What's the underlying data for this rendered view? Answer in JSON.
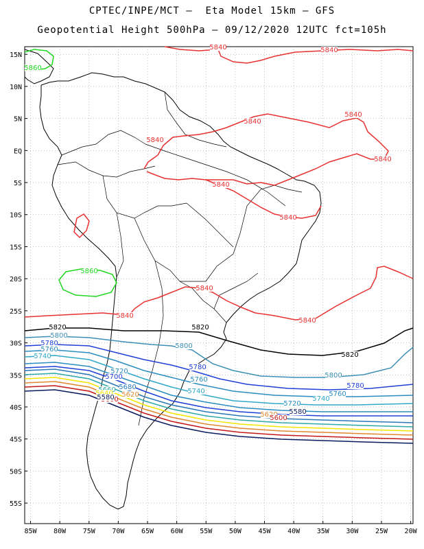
{
  "header": {
    "line1": "CPTEC/INPE/MCT –  Eta Model 15km – GFS",
    "line2": "Geopotential Height 500hPa – 09/12/2020 12UTC fct=105h"
  },
  "axes": {
    "lat_labels": [
      "15N",
      "10N",
      "5N",
      "EQ",
      "5S",
      "10S",
      "15S",
      "20S",
      "25S",
      "30S",
      "35S",
      "40S",
      "45S",
      "50S",
      "55S"
    ],
    "lon_labels": [
      "85W",
      "80W",
      "75W",
      "70W",
      "65W",
      "60W",
      "55W",
      "50W",
      "45W",
      "40W",
      "35W",
      "30W",
      "25W",
      "20W"
    ]
  },
  "contours": [
    {
      "level": "5580",
      "color": "#0a1a5e"
    },
    {
      "level": "5600",
      "color": "#c41818"
    },
    {
      "level": "5620",
      "color": "#e08830"
    },
    {
      "level": "5640",
      "color": "#f2e500"
    },
    {
      "level": "5660",
      "color": "#2ea8a8"
    },
    {
      "level": "5680",
      "color": "#2a78b8"
    },
    {
      "level": "5700",
      "color": "#1f3fd6"
    },
    {
      "level": "5720",
      "color": "#2a8cc0"
    },
    {
      "level": "5740",
      "color": "#2ea8c8"
    },
    {
      "level": "5760",
      "color": "#2a8cc0"
    },
    {
      "level": "5780",
      "color": "#1f3fd6"
    },
    {
      "level": "5800",
      "color": "#3b8fb5"
    },
    {
      "level": "5820",
      "color": "#000000"
    },
    {
      "level": "5840",
      "color": "#e83030"
    },
    {
      "level": "5860",
      "color": "#1fd81f"
    }
  ],
  "contour_labels": [
    {
      "text": "5840",
      "color": "#e83030"
    },
    {
      "text": "5860",
      "color": "#1fd81f"
    },
    {
      "text": "5820",
      "color": "#000000"
    },
    {
      "text": "5800",
      "color": "#3b8fb5"
    },
    {
      "text": "5780",
      "color": "#1f3fd6"
    },
    {
      "text": "5760",
      "color": "#2a8cc0"
    },
    {
      "text": "5740",
      "color": "#2ea8c8"
    },
    {
      "text": "5720",
      "color": "#2a8cc0"
    },
    {
      "text": "5700",
      "color": "#1f3fd6"
    },
    {
      "text": "5680",
      "color": "#2a78b8"
    },
    {
      "text": "5660",
      "color": "#2ea8a8"
    },
    {
      "text": "5640",
      "color": "#f2e500"
    },
    {
      "text": "5620",
      "color": "#e08830"
    },
    {
      "text": "5600",
      "color": "#c41818"
    },
    {
      "text": "5580",
      "color": "#0a1a5e"
    }
  ]
}
